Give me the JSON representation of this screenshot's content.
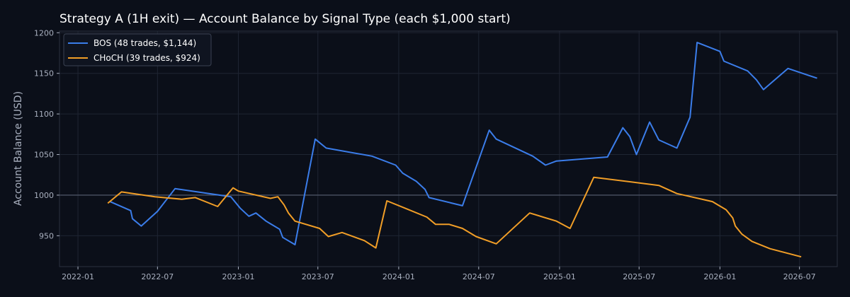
{
  "chart_data": {
    "type": "line",
    "title": "Strategy A (1H exit) — Account Balance by Signal Type (each $1,000 start)",
    "xlabel": "",
    "ylabel": "Account Balance (USD)",
    "x_ticks": [
      "2022-01",
      "2022-07",
      "2023-01",
      "2023-07",
      "2024-01",
      "2024-07",
      "2025-01",
      "2025-07",
      "2026-01",
      "2026-07"
    ],
    "xlim": [
      "2021-11-20",
      "2026-09-25"
    ],
    "y_ticks": [
      950,
      1000,
      1050,
      1100,
      1150,
      1200
    ],
    "ylim": [
      912,
      1202
    ],
    "grid": true,
    "reference_line": 1000,
    "legend": "top-left",
    "colors": {
      "background": "#0b0f19",
      "BOS": "#3b7dea",
      "CHoCH": "#f19e27",
      "reference": "#586072"
    },
    "series": [
      {
        "name": "BOS (48 trades, $1,144)",
        "color": "#3b7dea",
        "points": [
          [
            "2022-03-15",
            992
          ],
          [
            "2022-05-01",
            981
          ],
          [
            "2022-05-05",
            971
          ],
          [
            "2022-05-25",
            962
          ],
          [
            "2022-07-01",
            980
          ],
          [
            "2022-08-10",
            1008
          ],
          [
            "2022-12-15",
            998
          ],
          [
            "2023-01-05",
            984
          ],
          [
            "2023-01-25",
            974
          ],
          [
            "2023-02-10",
            978
          ],
          [
            "2023-03-05",
            968
          ],
          [
            "2023-04-05",
            958
          ],
          [
            "2023-04-12",
            948
          ],
          [
            "2023-05-10",
            939
          ],
          [
            "2023-06-25",
            1069
          ],
          [
            "2023-07-20",
            1058
          ],
          [
            "2023-11-01",
            1048
          ],
          [
            "2023-12-25",
            1037
          ],
          [
            "2024-01-10",
            1027
          ],
          [
            "2024-02-10",
            1017
          ],
          [
            "2024-03-01",
            1007
          ],
          [
            "2024-03-10",
            997
          ],
          [
            "2024-05-25",
            987
          ],
          [
            "2024-07-25",
            1080
          ],
          [
            "2024-08-10",
            1069
          ],
          [
            "2024-11-01",
            1048
          ],
          [
            "2024-11-30",
            1037
          ],
          [
            "2024-12-25",
            1042
          ],
          [
            "2025-04-20",
            1047
          ],
          [
            "2025-05-25",
            1083
          ],
          [
            "2025-06-10",
            1072
          ],
          [
            "2025-06-25",
            1050
          ],
          [
            "2025-07-25",
            1090
          ],
          [
            "2025-08-15",
            1068
          ],
          [
            "2025-09-25",
            1058
          ],
          [
            "2025-10-25",
            1096
          ],
          [
            "2025-11-10",
            1188
          ],
          [
            "2026-01-01",
            1177
          ],
          [
            "2026-01-10",
            1165
          ],
          [
            "2026-03-05",
            1153
          ],
          [
            "2026-03-25",
            1142
          ],
          [
            "2026-04-10",
            1130
          ],
          [
            "2026-06-05",
            1156
          ],
          [
            "2026-08-10",
            1144
          ]
        ]
      },
      {
        "name": "CHoCH (39 trades, $924)",
        "color": "#f19e27",
        "points": [
          [
            "2022-03-10",
            990
          ],
          [
            "2022-04-10",
            1004
          ],
          [
            "2022-06-25",
            998
          ],
          [
            "2022-08-25",
            995
          ],
          [
            "2022-09-25",
            997
          ],
          [
            "2022-11-15",
            986
          ],
          [
            "2022-12-20",
            1009
          ],
          [
            "2023-01-01",
            1005
          ],
          [
            "2023-03-15",
            996
          ],
          [
            "2023-04-01",
            998
          ],
          [
            "2023-04-15",
            988
          ],
          [
            "2023-04-25",
            978
          ],
          [
            "2023-05-10",
            968
          ],
          [
            "2023-07-05",
            959
          ],
          [
            "2023-07-25",
            949
          ],
          [
            "2023-08-25",
            954
          ],
          [
            "2023-10-15",
            944
          ],
          [
            "2023-11-10",
            935
          ],
          [
            "2023-12-05",
            993
          ],
          [
            "2024-01-15",
            984
          ],
          [
            "2024-03-05",
            973
          ],
          [
            "2024-03-25",
            964
          ],
          [
            "2024-04-25",
            964
          ],
          [
            "2024-05-25",
            959
          ],
          [
            "2024-06-25",
            949
          ],
          [
            "2024-08-10",
            940
          ],
          [
            "2024-10-25",
            978
          ],
          [
            "2024-12-25",
            968
          ],
          [
            "2025-01-25",
            959
          ],
          [
            "2025-03-20",
            1022
          ],
          [
            "2025-08-15",
            1012
          ],
          [
            "2025-09-25",
            1002
          ],
          [
            "2025-12-15",
            992
          ],
          [
            "2026-01-15",
            982
          ],
          [
            "2026-01-30",
            972
          ],
          [
            "2026-02-05",
            962
          ],
          [
            "2026-02-20",
            952
          ],
          [
            "2026-03-15",
            943
          ],
          [
            "2026-04-25",
            934
          ],
          [
            "2026-07-05",
            924
          ]
        ]
      }
    ]
  }
}
